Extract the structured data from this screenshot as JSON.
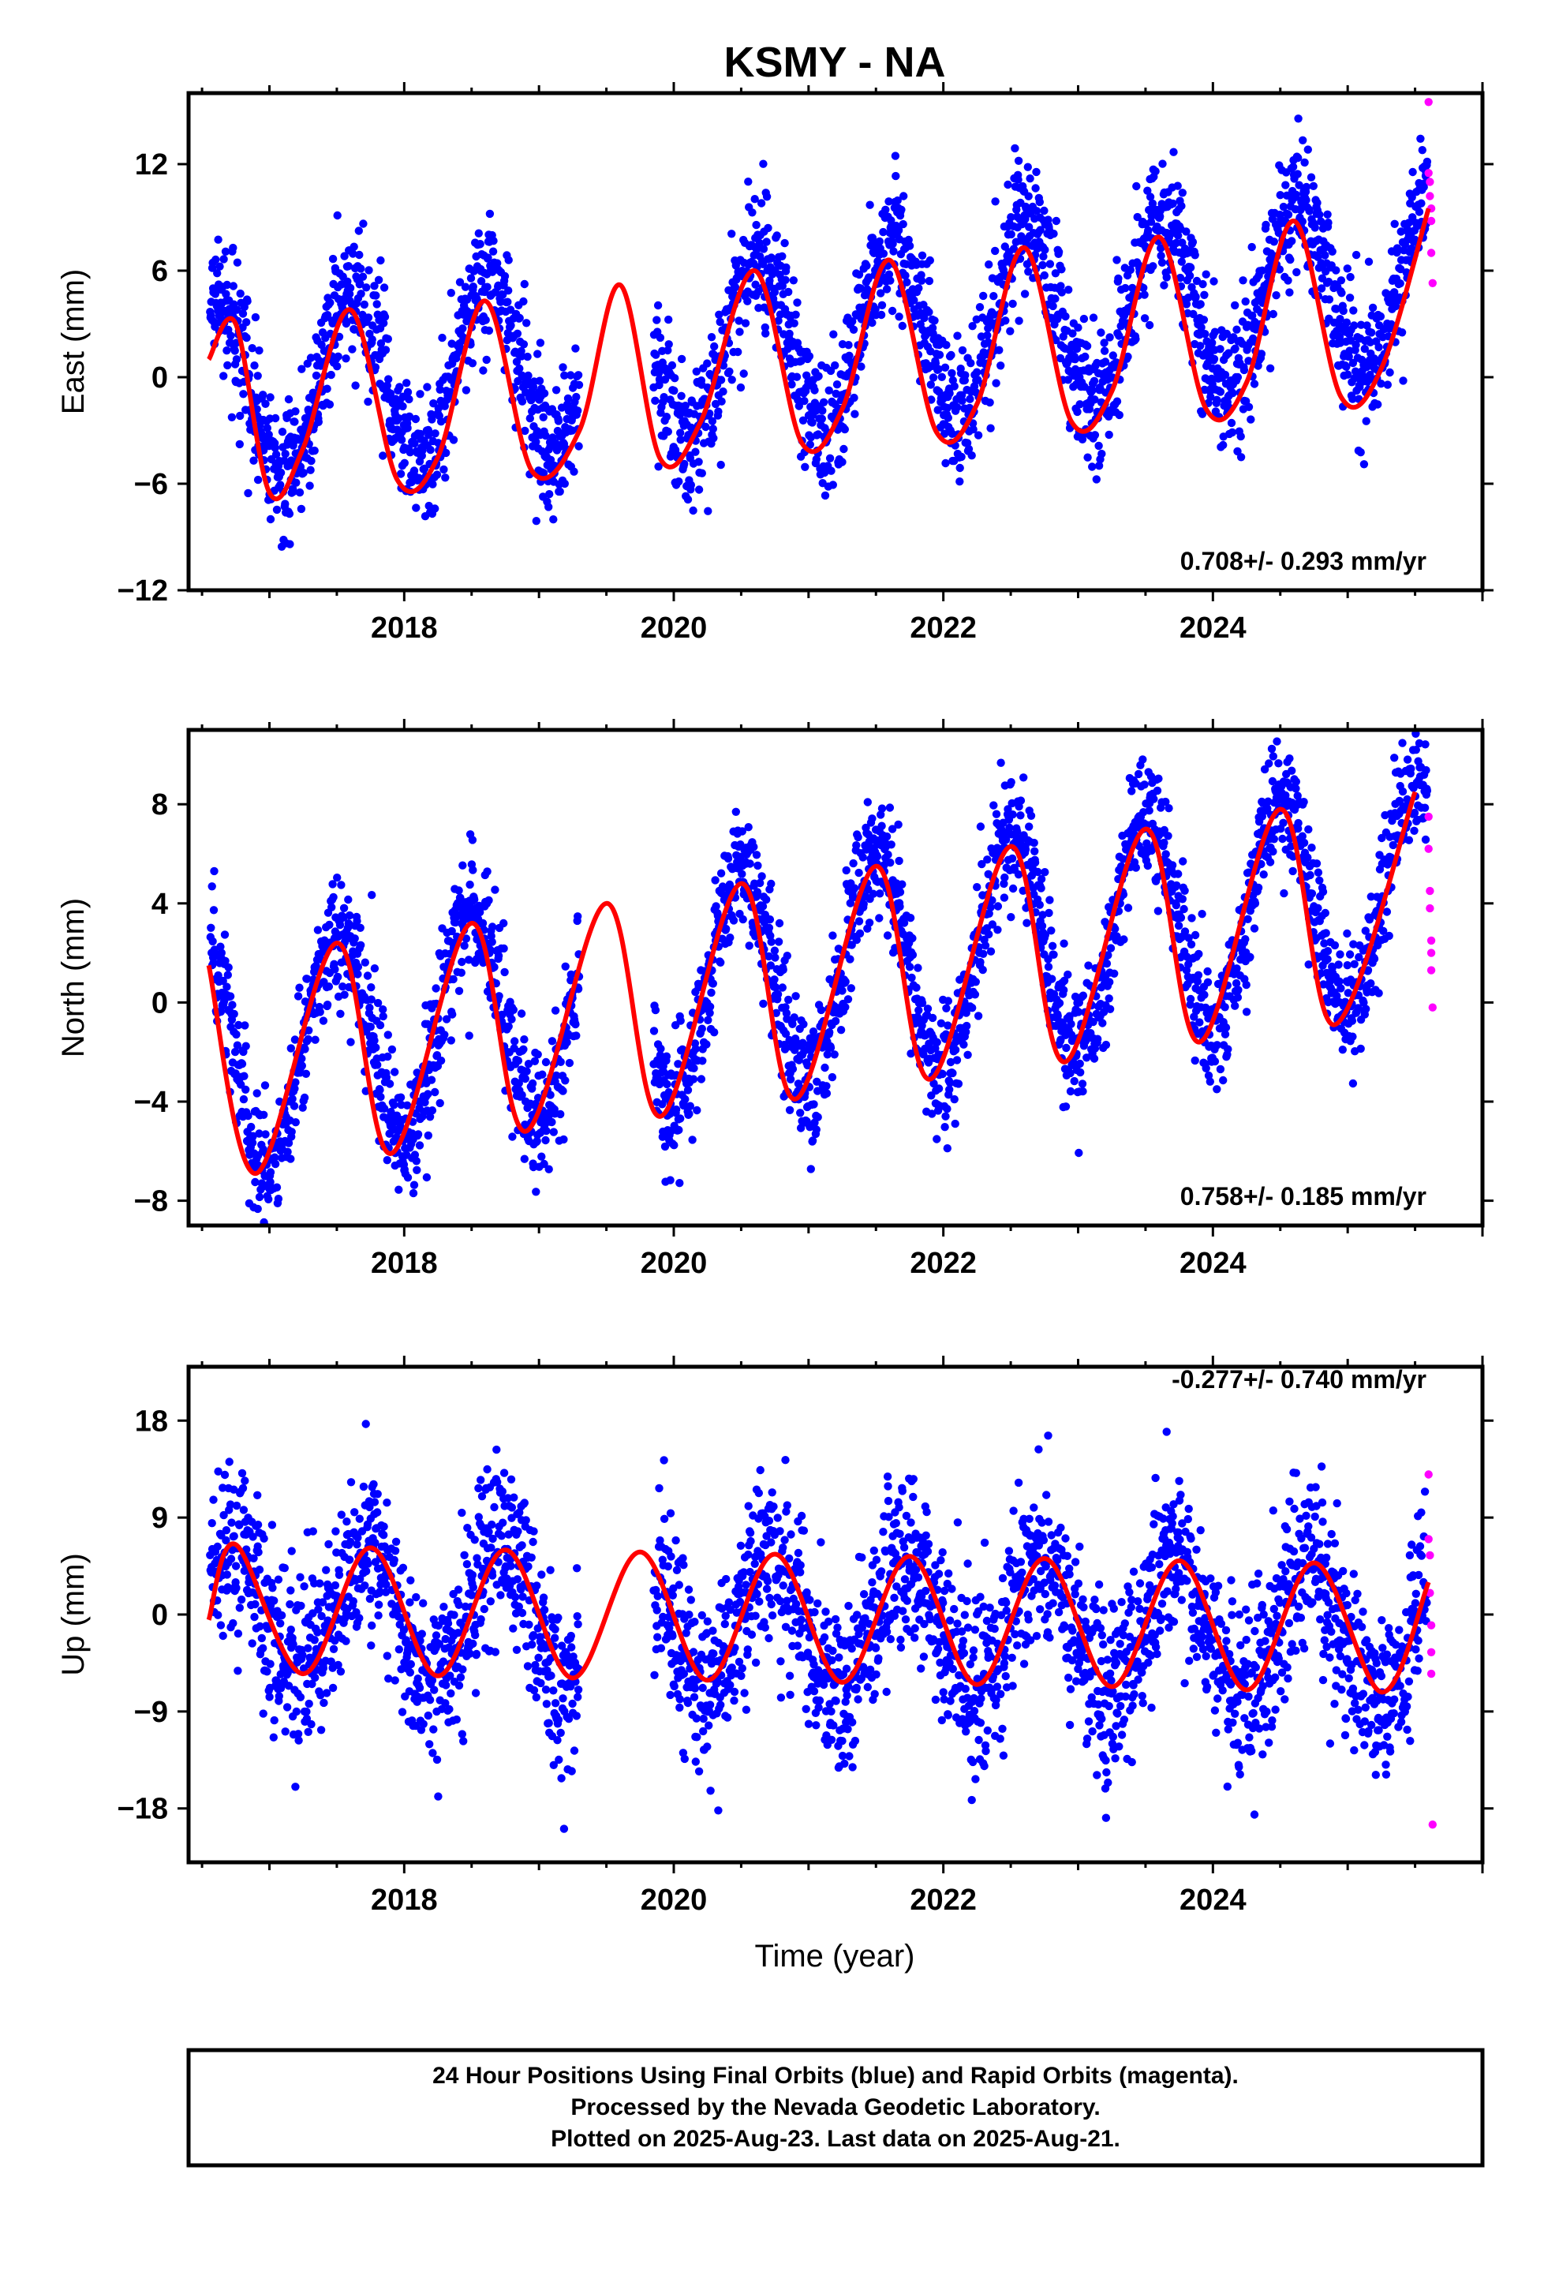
{
  "title": "KSMY - NA",
  "colors": {
    "final_orbit_points": "#0000ff",
    "rapid_orbit_points": "#ff00ff",
    "model_fit": "#ff0000",
    "frame": "#000000"
  },
  "chart_data": [
    {
      "type": "scatter",
      "panel": "east",
      "ylabel": "East (mm)",
      "xlabel": "",
      "ylim": [
        -12,
        16
      ],
      "yticks": [
        -12,
        -6,
        0,
        6,
        12
      ],
      "xlim": [
        2016.4,
        2026.0
      ],
      "xticks": [
        2018,
        2020,
        2022,
        2024
      ],
      "rate_text": "0.708+/- 0.293 mm/yr",
      "model": {
        "rate": 0.708,
        "amplitude": 5.0,
        "peak_phase": 0.62,
        "offset_2016": -1.0,
        "gap": [
          2019.3,
          2019.85
        ]
      },
      "fit_curve": {
        "x": [
          2016.55,
          2016.75,
          2017.0,
          2017.25,
          2017.6,
          2017.95,
          2018.25,
          2018.6,
          2018.95,
          2019.3,
          2019.6,
          2019.9,
          2020.2,
          2020.6,
          2020.95,
          2021.25,
          2021.6,
          2021.95,
          2022.25,
          2022.6,
          2022.95,
          2023.25,
          2023.6,
          2023.95,
          2024.25,
          2024.6,
          2024.95,
          2025.25,
          2025.6
        ],
        "y": [
          1.0,
          3.0,
          -6.5,
          -4.0,
          3.8,
          -5.8,
          -4.5,
          4.3,
          -5.3,
          -3.0,
          5.2,
          -4.6,
          -2.5,
          6.0,
          -3.7,
          -1.8,
          6.6,
          -3.1,
          -1.5,
          7.3,
          -2.5,
          -0.8,
          7.9,
          -1.8,
          -0.3,
          8.8,
          -1.1,
          0.5,
          9.5
        ]
      },
      "rapid_orbits": {
        "x": [
          2025.6,
          2025.6,
          2025.61,
          2025.61,
          2025.62,
          2025.62,
          2025.62,
          2025.63
        ],
        "y": [
          15.5,
          11.5,
          11.0,
          10.2,
          9.5,
          8.8,
          7.0,
          5.3
        ]
      }
    },
    {
      "type": "scatter",
      "panel": "north",
      "ylabel": "North (mm)",
      "xlabel": "",
      "ylim": [
        -9,
        11
      ],
      "yticks": [
        -8,
        -4,
        0,
        4,
        8
      ],
      "xlim": [
        2016.4,
        2026.0
      ],
      "xticks": [
        2018,
        2020,
        2022,
        2024
      ],
      "rate_text": "0.758+/- 0.185 mm/yr",
      "model": {
        "rate": 0.758,
        "amplitude": 4.5,
        "peak_phase": 0.5,
        "offset_2016": -2.3,
        "gap": [
          2019.3,
          2019.85
        ]
      },
      "fit_curve": {
        "x": [
          2016.55,
          2016.9,
          2017.5,
          2017.9,
          2018.5,
          2018.9,
          2019.5,
          2019.9,
          2020.5,
          2020.9,
          2021.5,
          2021.9,
          2022.5,
          2022.9,
          2023.5,
          2023.9,
          2024.5,
          2024.9,
          2025.5
        ],
        "y": [
          1.5,
          -6.9,
          2.4,
          -6.1,
          3.2,
          -5.2,
          4.0,
          -4.6,
          4.8,
          -3.9,
          5.5,
          -3.1,
          6.3,
          -2.4,
          7.0,
          -1.6,
          7.8,
          -0.9,
          8.5
        ]
      },
      "rapid_orbits": {
        "x": [
          2025.6,
          2025.6,
          2025.61,
          2025.61,
          2025.62,
          2025.62,
          2025.62,
          2025.63
        ],
        "y": [
          7.5,
          6.2,
          4.5,
          3.8,
          2.5,
          2.0,
          1.3,
          -0.2
        ]
      }
    },
    {
      "type": "scatter",
      "panel": "up",
      "ylabel": "Up (mm)",
      "xlabel": "Time (year)",
      "ylim": [
        -23,
        23
      ],
      "yticks": [
        -18,
        -9,
        0,
        9,
        18
      ],
      "xlim": [
        2016.4,
        2026.0
      ],
      "xticks": [
        2018,
        2020,
        2022,
        2024
      ],
      "rate_text": "-0.277+/- 0.740 mm/yr",
      "model": {
        "rate": -0.277,
        "amplitude": 6.0,
        "peak_phase": 0.72,
        "offset_2016": 0.5,
        "gap": [
          2019.3,
          2019.85
        ]
      },
      "fit_curve": {
        "x": [
          2016.55,
          2016.75,
          2017.25,
          2017.75,
          2018.25,
          2018.75,
          2019.25,
          2019.75,
          2020.25,
          2020.75,
          2021.25,
          2021.75,
          2022.25,
          2022.75,
          2023.25,
          2023.75,
          2024.25,
          2024.75,
          2025.25,
          2025.6
        ],
        "y": [
          -0.5,
          6.5,
          -5.5,
          6.2,
          -5.7,
          6.0,
          -5.9,
          5.8,
          -6.1,
          5.6,
          -6.3,
          5.4,
          -6.5,
          5.2,
          -6.7,
          5.0,
          -7.0,
          4.8,
          -7.2,
          3.0
        ]
      },
      "rapid_orbits": {
        "x": [
          2025.6,
          2025.6,
          2025.61,
          2025.61,
          2025.62,
          2025.62,
          2025.62,
          2025.63
        ],
        "y": [
          13.0,
          7.0,
          5.5,
          2.0,
          -1.0,
          -3.5,
          -5.5,
          -19.5
        ]
      }
    }
  ],
  "caption": {
    "line1": "24 Hour Positions Using Final Orbits (blue) and Rapid Orbits (magenta).",
    "line2": "Processed by the Nevada Geodetic Laboratory.",
    "line3": "Plotted on 2025-Aug-23. Last data on 2025-Aug-21."
  }
}
